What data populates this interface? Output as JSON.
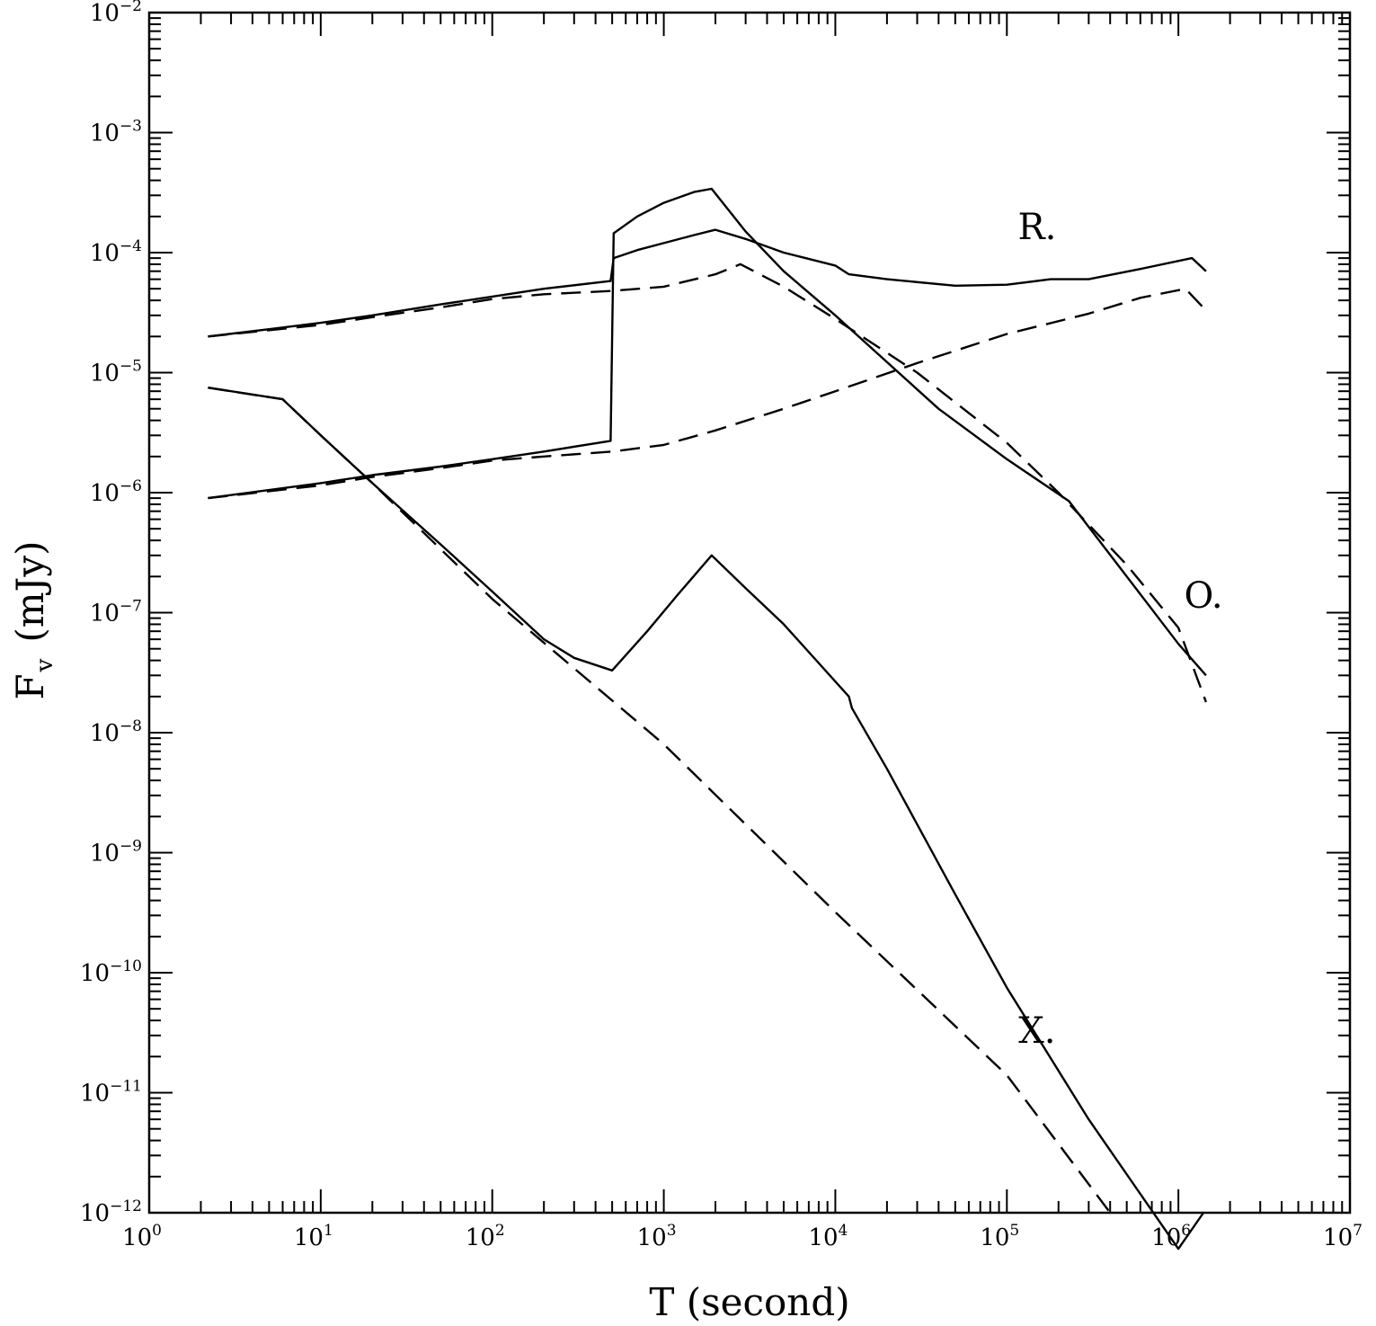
{
  "chart_data": {
    "type": "line",
    "title": "",
    "xlabel": "T (second)",
    "ylabel": {
      "main": "F",
      "sub": "v",
      "unit": "(mJy)"
    },
    "xscale": "log",
    "yscale": "log",
    "xlim": [
      1,
      10000000
    ],
    "ylim": [
      1e-12,
      0.01
    ],
    "grid": false,
    "x_ticks": [
      {
        "base": "10",
        "exp": "0"
      },
      {
        "base": "10",
        "exp": "1"
      },
      {
        "base": "10",
        "exp": "2"
      },
      {
        "base": "10",
        "exp": "3"
      },
      {
        "base": "10",
        "exp": "4"
      },
      {
        "base": "10",
        "exp": "5"
      },
      {
        "base": "10",
        "exp": "6"
      },
      {
        "base": "10",
        "exp": "7"
      }
    ],
    "y_ticks": [
      {
        "base": "10",
        "exp": "-12"
      },
      {
        "base": "10",
        "exp": "-11"
      },
      {
        "base": "10",
        "exp": "-10"
      },
      {
        "base": "10",
        "exp": "-9"
      },
      {
        "base": "10",
        "exp": "-8"
      },
      {
        "base": "10",
        "exp": "-7"
      },
      {
        "base": "10",
        "exp": "-6"
      },
      {
        "base": "10",
        "exp": "-5"
      },
      {
        "base": "10",
        "exp": "-4"
      },
      {
        "base": "10",
        "exp": "-3"
      },
      {
        "base": "10",
        "exp": "-2"
      }
    ],
    "annotations": [
      {
        "text": "R.",
        "x": 150000,
        "y": 0.00013
      },
      {
        "text": "O.",
        "x": 1400000,
        "y": 1.1e-07
      },
      {
        "text": "X.",
        "x": 150000,
        "y": 2.6e-11
      }
    ],
    "series": [
      {
        "style": "solid",
        "points": [
          [
            2.2,
            2e-05
          ],
          [
            5,
            2.3e-05
          ],
          [
            10,
            2.6e-05
          ],
          [
            20,
            3e-05
          ],
          [
            50,
            3.7e-05
          ],
          [
            100,
            4.3e-05
          ],
          [
            200,
            5e-05
          ],
          [
            490,
            5.8e-05
          ],
          [
            510,
            9e-05
          ],
          [
            700,
            0.000105
          ],
          [
            1000,
            0.00012
          ],
          [
            1500,
            0.00014
          ],
          [
            2000,
            0.000155
          ],
          [
            3000,
            0.00013
          ],
          [
            5000,
            0.0001
          ],
          [
            10000,
            7.8e-05
          ],
          [
            12000,
            6.6e-05
          ],
          [
            20000,
            6e-05
          ],
          [
            50000,
            5.3e-05
          ],
          [
            100000,
            5.4e-05
          ],
          [
            180000,
            6e-05
          ],
          [
            300000,
            6e-05
          ],
          [
            600000,
            7.3e-05
          ],
          [
            1200000,
            9e-05
          ],
          [
            1450000,
            7e-05
          ]
        ]
      },
      {
        "style": "dashed",
        "points": [
          [
            2.2,
            2e-05
          ],
          [
            10,
            2.5e-05
          ],
          [
            20,
            2.9e-05
          ],
          [
            50,
            3.5e-05
          ],
          [
            100,
            4.1e-05
          ],
          [
            200,
            4.5e-05
          ],
          [
            500,
            4.8e-05
          ],
          [
            1000,
            5.2e-05
          ],
          [
            2000,
            6.6e-05
          ],
          [
            2800,
            8e-05
          ],
          [
            5000,
            5.2e-05
          ],
          [
            10000,
            2.8e-05
          ],
          [
            30000,
            1e-05
          ],
          [
            100000,
            2.6e-06
          ],
          [
            200000,
            1e-06
          ],
          [
            500000,
            2.5e-07
          ],
          [
            1000000,
            7.5e-08
          ],
          [
            1450000,
            1.8e-08
          ]
        ]
      },
      {
        "style": "solid",
        "points": [
          [
            2.2,
            9e-07
          ],
          [
            10,
            1.2e-06
          ],
          [
            20,
            1.4e-06
          ],
          [
            50,
            1.65e-06
          ],
          [
            100,
            1.9e-06
          ],
          [
            200,
            2.2e-06
          ],
          [
            490,
            2.7e-06
          ],
          [
            510,
            0.000145
          ],
          [
            700,
            0.0002
          ],
          [
            1000,
            0.00026
          ],
          [
            1500,
            0.00032
          ],
          [
            1900,
            0.00034
          ],
          [
            3000,
            0.00015
          ],
          [
            5000,
            7e-05
          ],
          [
            10000,
            3e-05
          ],
          [
            40000,
            5e-06
          ],
          [
            100000,
            1.9e-06
          ],
          [
            230000,
            8.5e-07
          ],
          [
            500000,
            2e-07
          ],
          [
            1000000,
            5.5e-08
          ],
          [
            1450000,
            3e-08
          ]
        ]
      },
      {
        "style": "dashed",
        "points": [
          [
            2.2,
            9e-07
          ],
          [
            10,
            1.15e-06
          ],
          [
            20,
            1.35e-06
          ],
          [
            50,
            1.6e-06
          ],
          [
            100,
            1.85e-06
          ],
          [
            200,
            2e-06
          ],
          [
            500,
            2.2e-06
          ],
          [
            1000,
            2.5e-06
          ],
          [
            2000,
            3.3e-06
          ],
          [
            5000,
            5e-06
          ],
          [
            10000,
            7e-06
          ],
          [
            30000,
            1.2e-05
          ],
          [
            100000,
            2.1e-05
          ],
          [
            300000,
            3.1e-05
          ],
          [
            600000,
            4.2e-05
          ],
          [
            1100000,
            5e-05
          ],
          [
            1450000,
            3.3e-05
          ]
        ]
      },
      {
        "style": "solid",
        "points": [
          [
            2.2,
            7.5e-06
          ],
          [
            6,
            6e-06
          ],
          [
            10,
            3e-06
          ],
          [
            20,
            1.2e-06
          ],
          [
            50,
            3.7e-07
          ],
          [
            100,
            1.5e-07
          ],
          [
            200,
            6e-08
          ],
          [
            300,
            4.2e-08
          ],
          [
            500,
            3.3e-08
          ],
          [
            800,
            7e-08
          ],
          [
            1200,
            1.4e-07
          ],
          [
            1900,
            3e-07
          ],
          [
            3000,
            1.6e-07
          ],
          [
            5000,
            8e-08
          ],
          [
            12000,
            2e-08
          ],
          [
            12500,
            1.6e-08
          ],
          [
            20000,
            5e-09
          ],
          [
            50000,
            4.5e-10
          ],
          [
            100000,
            7.5e-11
          ],
          [
            300000,
            6e-12
          ],
          [
            1000000,
            5e-13
          ],
          [
            1400000,
            1e-12
          ]
        ]
      },
      {
        "style": "dashed",
        "points": [
          [
            2.2,
            7.5e-06
          ],
          [
            6,
            6e-06
          ],
          [
            10,
            3e-06
          ],
          [
            20,
            1.2e-06
          ],
          [
            100,
            1.3e-07
          ],
          [
            1000,
            8e-09
          ],
          [
            10000,
            3.2e-10
          ],
          [
            100000,
            1.4e-11
          ],
          [
            400000,
            1e-12
          ]
        ]
      }
    ]
  }
}
